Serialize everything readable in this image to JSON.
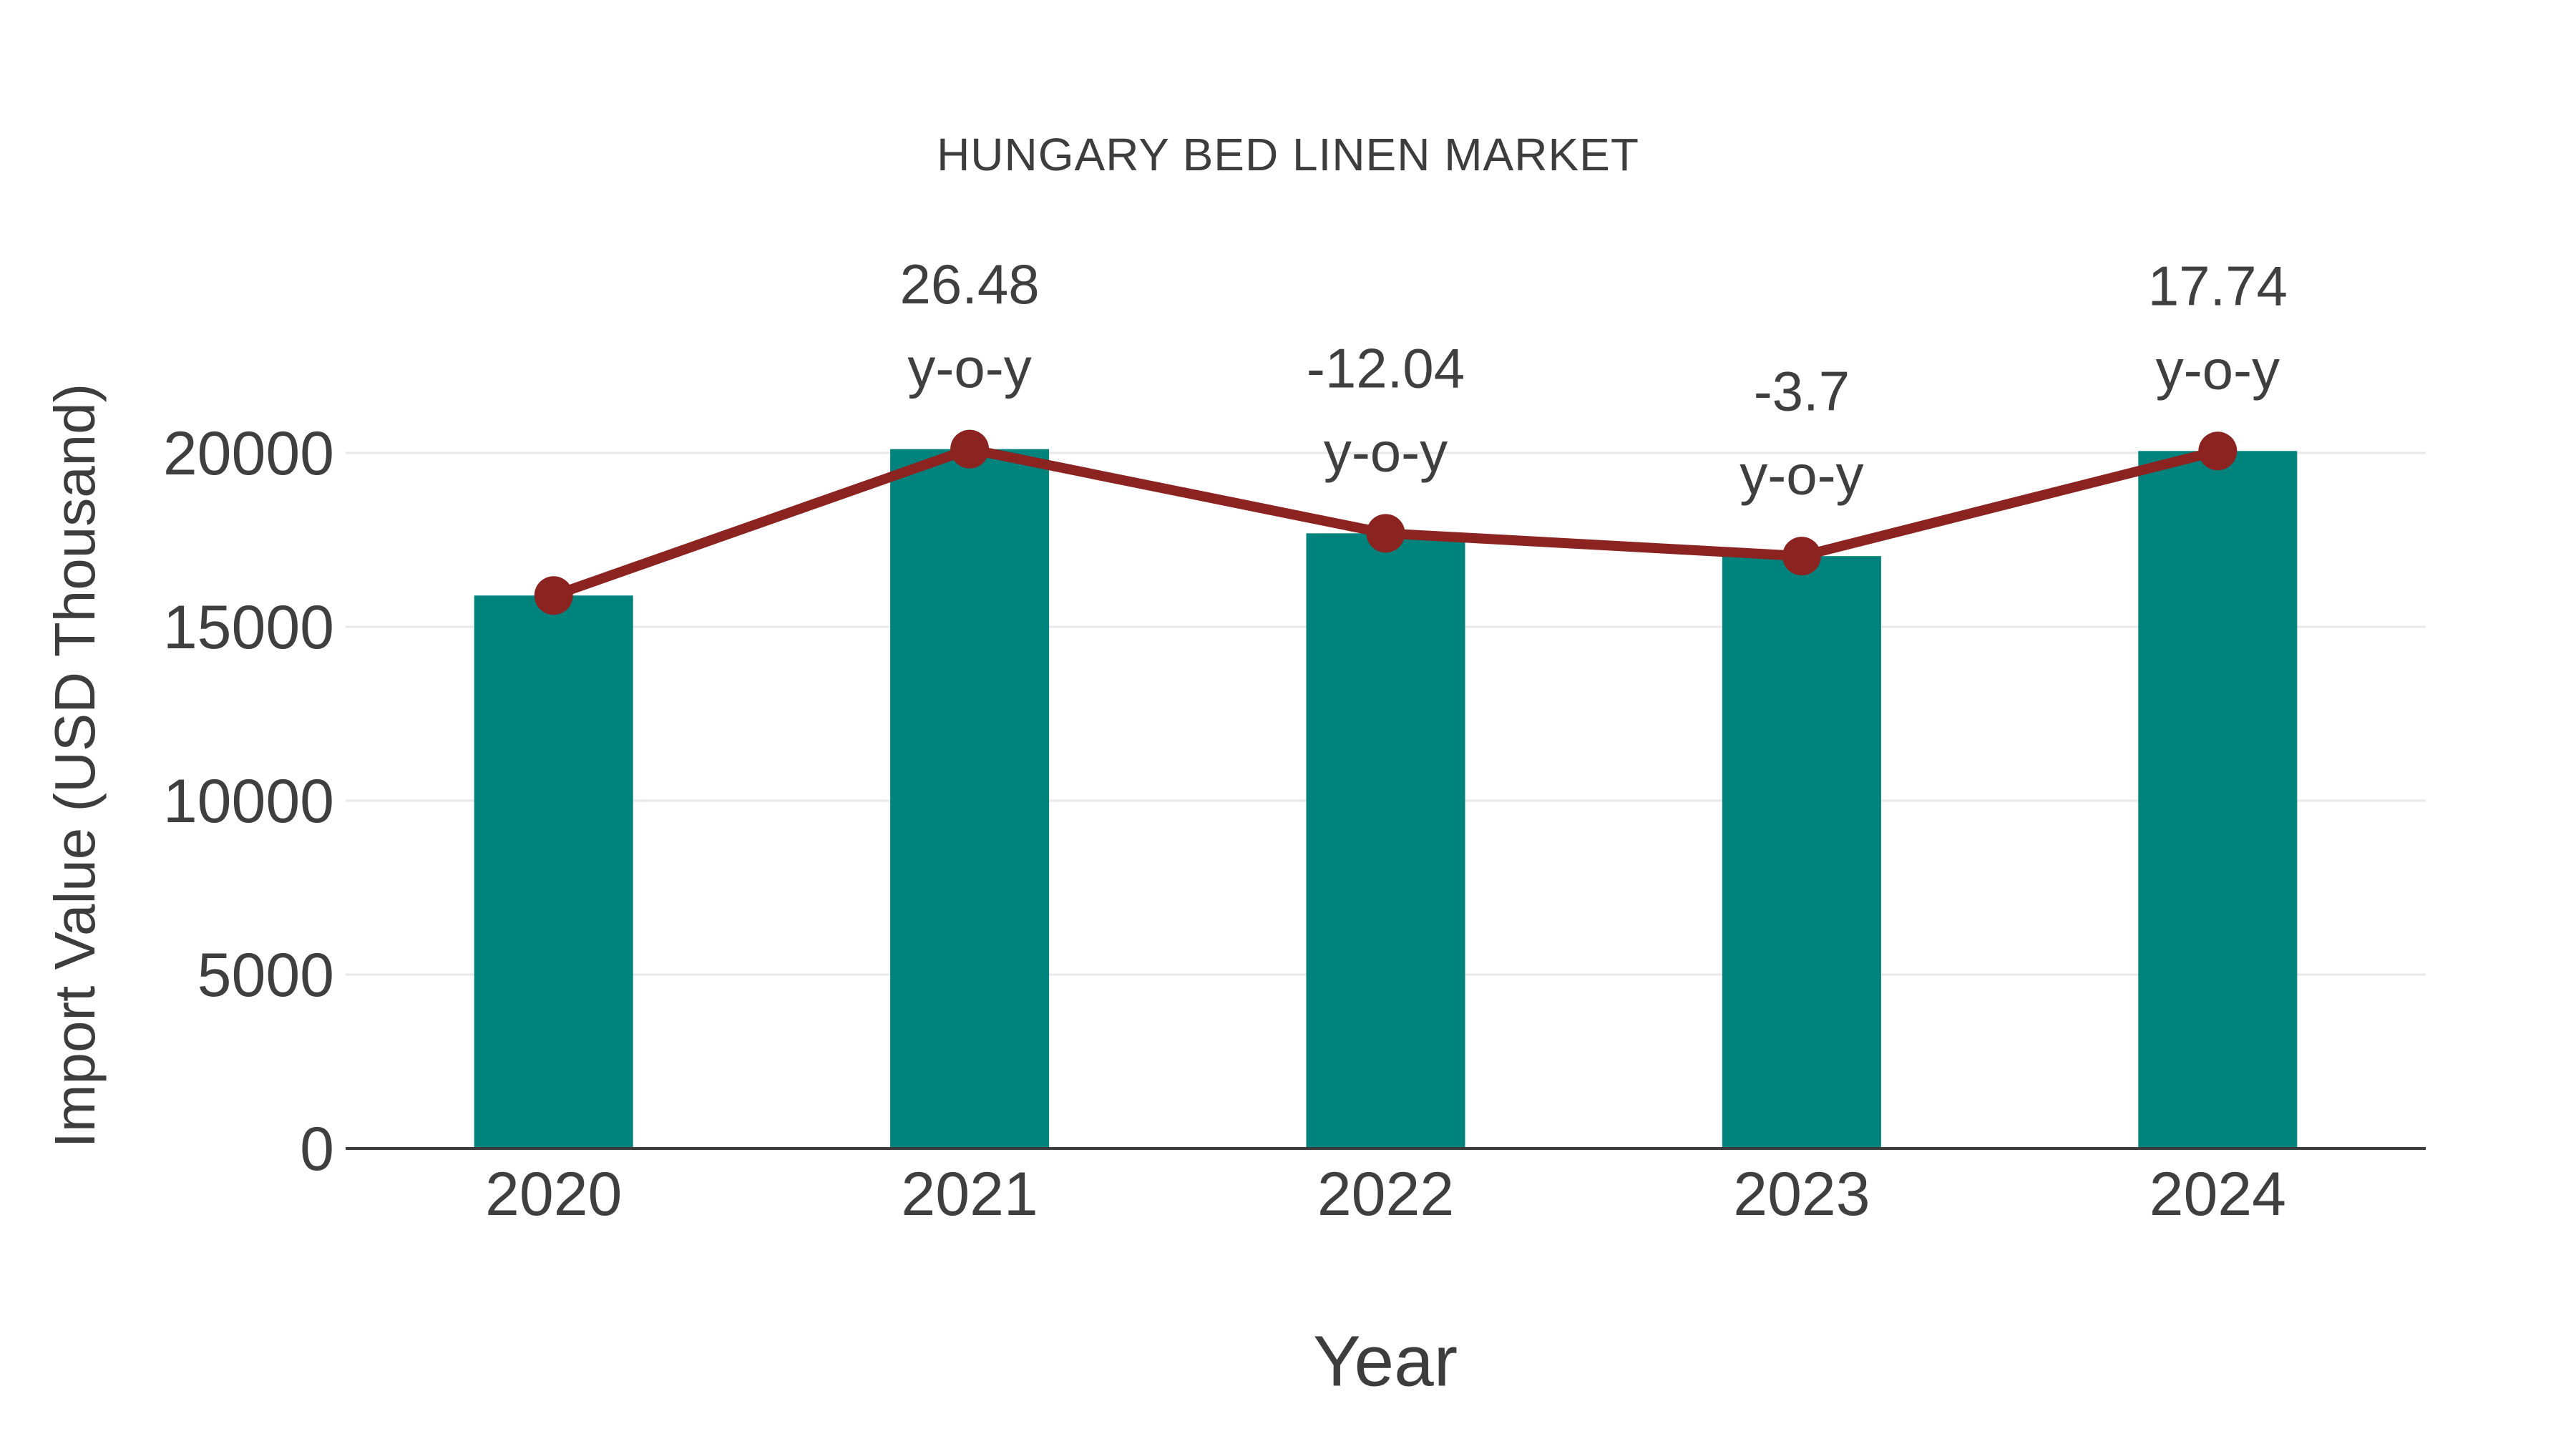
{
  "page": {
    "background": "#ffffff"
  },
  "colors": {
    "bar": "#00827D",
    "line": "#8B2321",
    "marker": "#8B2321",
    "text": "#3F3F3F",
    "grid": "#E8E8E8",
    "axis": "#3C3C3C"
  },
  "chart_data": {
    "type": "bar",
    "title": "HUNGARY BED LINEN MARKET",
    "xlabel": "Year",
    "ylabel": "Import Value (USD Thousand)",
    "categories": [
      "2020",
      "2021",
      "2022",
      "2023",
      "2024"
    ],
    "series": [
      {
        "name": "import-value-bars",
        "type": "bar",
        "values": [
          15900,
          20110,
          17689,
          17034,
          20056
        ]
      },
      {
        "name": "import-value-trend",
        "type": "line",
        "values": [
          15900,
          20110,
          17689,
          17034,
          20056
        ]
      }
    ],
    "yoy_labels": [
      null,
      "26.48",
      "-12.04",
      "-3.7",
      "17.74"
    ],
    "yoy_suffix": "y-o-y",
    "yticks": [
      0,
      5000,
      10000,
      15000,
      20000
    ],
    "ylim": [
      0,
      21500
    ],
    "legend": "none",
    "grid": "horizontal"
  }
}
